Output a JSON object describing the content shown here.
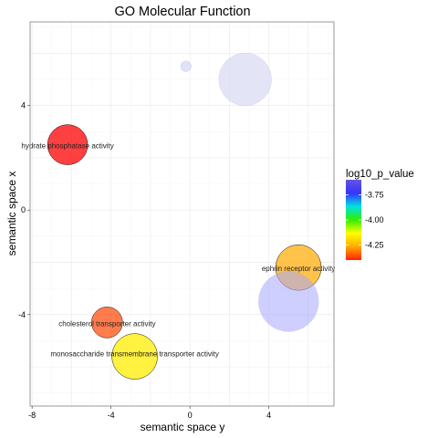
{
  "chart_data": {
    "type": "scatter",
    "title": "GO Molecular Function",
    "xlabel": "semantic space y",
    "ylabel": "semantic space x",
    "xlim": [
      -8.1,
      7.3
    ],
    "ylim": [
      -7.5,
      7.2
    ],
    "x_ticks": [
      -8,
      -4,
      0,
      4
    ],
    "x_tick_labels": [
      "-8",
      "-4",
      "0",
      "4"
    ],
    "y_ticks": [
      -4,
      0,
      4
    ],
    "y_tick_labels": [
      "-4",
      "0",
      "4"
    ],
    "grid": true,
    "colorbar": {
      "title": "log10_p_value",
      "range": [
        -4.4,
        -3.6
      ],
      "ticks": [
        -3.75,
        -4.0,
        -4.25
      ],
      "tick_labels": [
        "-3.75",
        "-4.00",
        "-4.25"
      ],
      "colors": [
        "#ff2200",
        "#ffaa00",
        "#ffff00",
        "#33ee00",
        "#00e2e2",
        "#3333ff",
        "#6655dd"
      ]
    },
    "points": [
      {
        "x": -6.2,
        "y": 2.5,
        "size": 22,
        "color": "#ff0000",
        "opacity": 0.75,
        "label": "hydrate phosphatase activity",
        "label_dy": 4
      },
      {
        "x": 5.5,
        "y": -2.2,
        "size": 25,
        "color": "#ffaa00",
        "opacity": 0.7,
        "label": "ephrin receptor activity",
        "label_dy": 4
      },
      {
        "x": -4.2,
        "y": -4.3,
        "size": 17,
        "color": "#ff4400",
        "opacity": 0.7,
        "label": "cholesterol transporter activity",
        "label_dy": 4
      },
      {
        "x": -2.8,
        "y": -5.6,
        "size": 25,
        "color": "#ffee00",
        "opacity": 0.75,
        "label": "monosaccharide transmembrane transporter activity",
        "label_dy": 0
      },
      {
        "x": 2.8,
        "y": 5.0,
        "size": 29,
        "color": "#d8d8f4",
        "opacity": 0.7,
        "label": "",
        "label_dy": 0
      },
      {
        "x": -0.2,
        "y": 5.5,
        "size": 6,
        "color": "#d8d8f4",
        "opacity": 0.8,
        "label": "",
        "label_dy": 0
      },
      {
        "x": 5.0,
        "y": -3.5,
        "size": 33,
        "color": "#a8a8ff",
        "opacity": 0.55,
        "label": "",
        "label_dy": 0
      }
    ]
  }
}
